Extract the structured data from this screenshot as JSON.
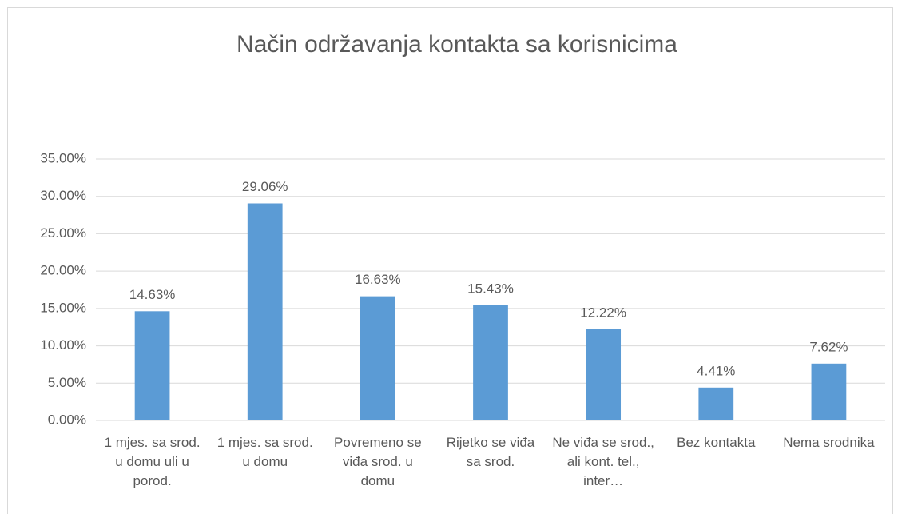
{
  "chart_data": {
    "type": "bar",
    "title": "Način održavanja kontakta sa korisnicima",
    "categories": [
      "1 mjes. sa srod. u domu uli u porod.",
      "1 mjes. sa srod. u domu",
      "Povremeno se viđa srod. u domu",
      "Rijetko se viđa sa srod.",
      "Ne viđa se srod., ali kont. tel., inter…",
      "Bez kontakta",
      "Nema srodnika"
    ],
    "values": [
      14.63,
      29.06,
      16.63,
      15.43,
      12.22,
      4.41,
      7.62
    ],
    "value_labels": [
      "14.63%",
      "29.06%",
      "16.63%",
      "15.43%",
      "12.22%",
      "4.41%",
      "7.62%"
    ],
    "color": "#5b9bd5",
    "ylim": [
      0,
      35
    ],
    "yticks": [
      {
        "value": 0,
        "label": "0.00%"
      },
      {
        "value": 5,
        "label": "5.00%"
      },
      {
        "value": 10,
        "label": "10.00%"
      },
      {
        "value": 15,
        "label": "15.00%"
      },
      {
        "value": 20,
        "label": "20.00%"
      },
      {
        "value": 25,
        "label": "25.00%"
      },
      {
        "value": 30,
        "label": "30.00%"
      },
      {
        "value": 35,
        "label": "35.00%"
      }
    ],
    "grid": true
  }
}
